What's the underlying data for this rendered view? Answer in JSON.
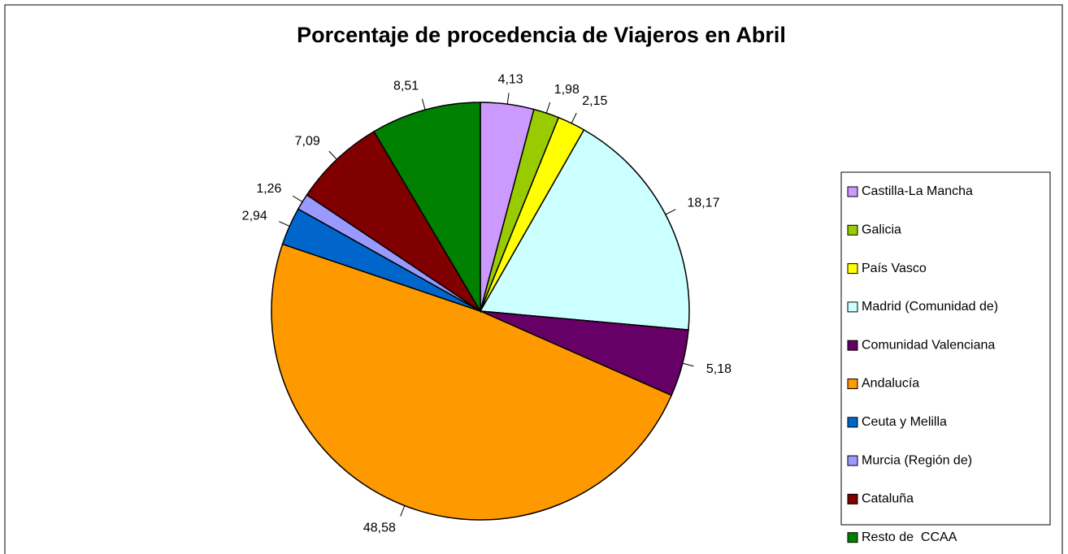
{
  "chart_data": {
    "type": "pie",
    "title": "Porcentaje de procedencia de Viajeros en Abril",
    "categories": [
      "Castilla-La Mancha",
      "Galicia",
      "País Vasco",
      "Madrid (Comunidad de)",
      "Comunidad Valenciana",
      "Andalucía",
      "Ceuta y Melilla",
      "Murcia (Región de)",
      "Cataluña",
      "Resto de  CCAA"
    ],
    "values": [
      4.13,
      1.98,
      2.15,
      18.17,
      5.18,
      48.58,
      2.94,
      1.26,
      7.09,
      8.51
    ],
    "value_labels": [
      "4,13",
      "1,98",
      "2,15",
      "18,17",
      "5,18",
      "48,58",
      "2,94",
      "1,26",
      "7,09",
      "8,51"
    ],
    "colors": [
      "#cc99ff",
      "#99cc00",
      "#ffff00",
      "#ccffff",
      "#660066",
      "#ff9900",
      "#0066cc",
      "#9999ff",
      "#800000",
      "#008000"
    ],
    "legend": "right"
  }
}
